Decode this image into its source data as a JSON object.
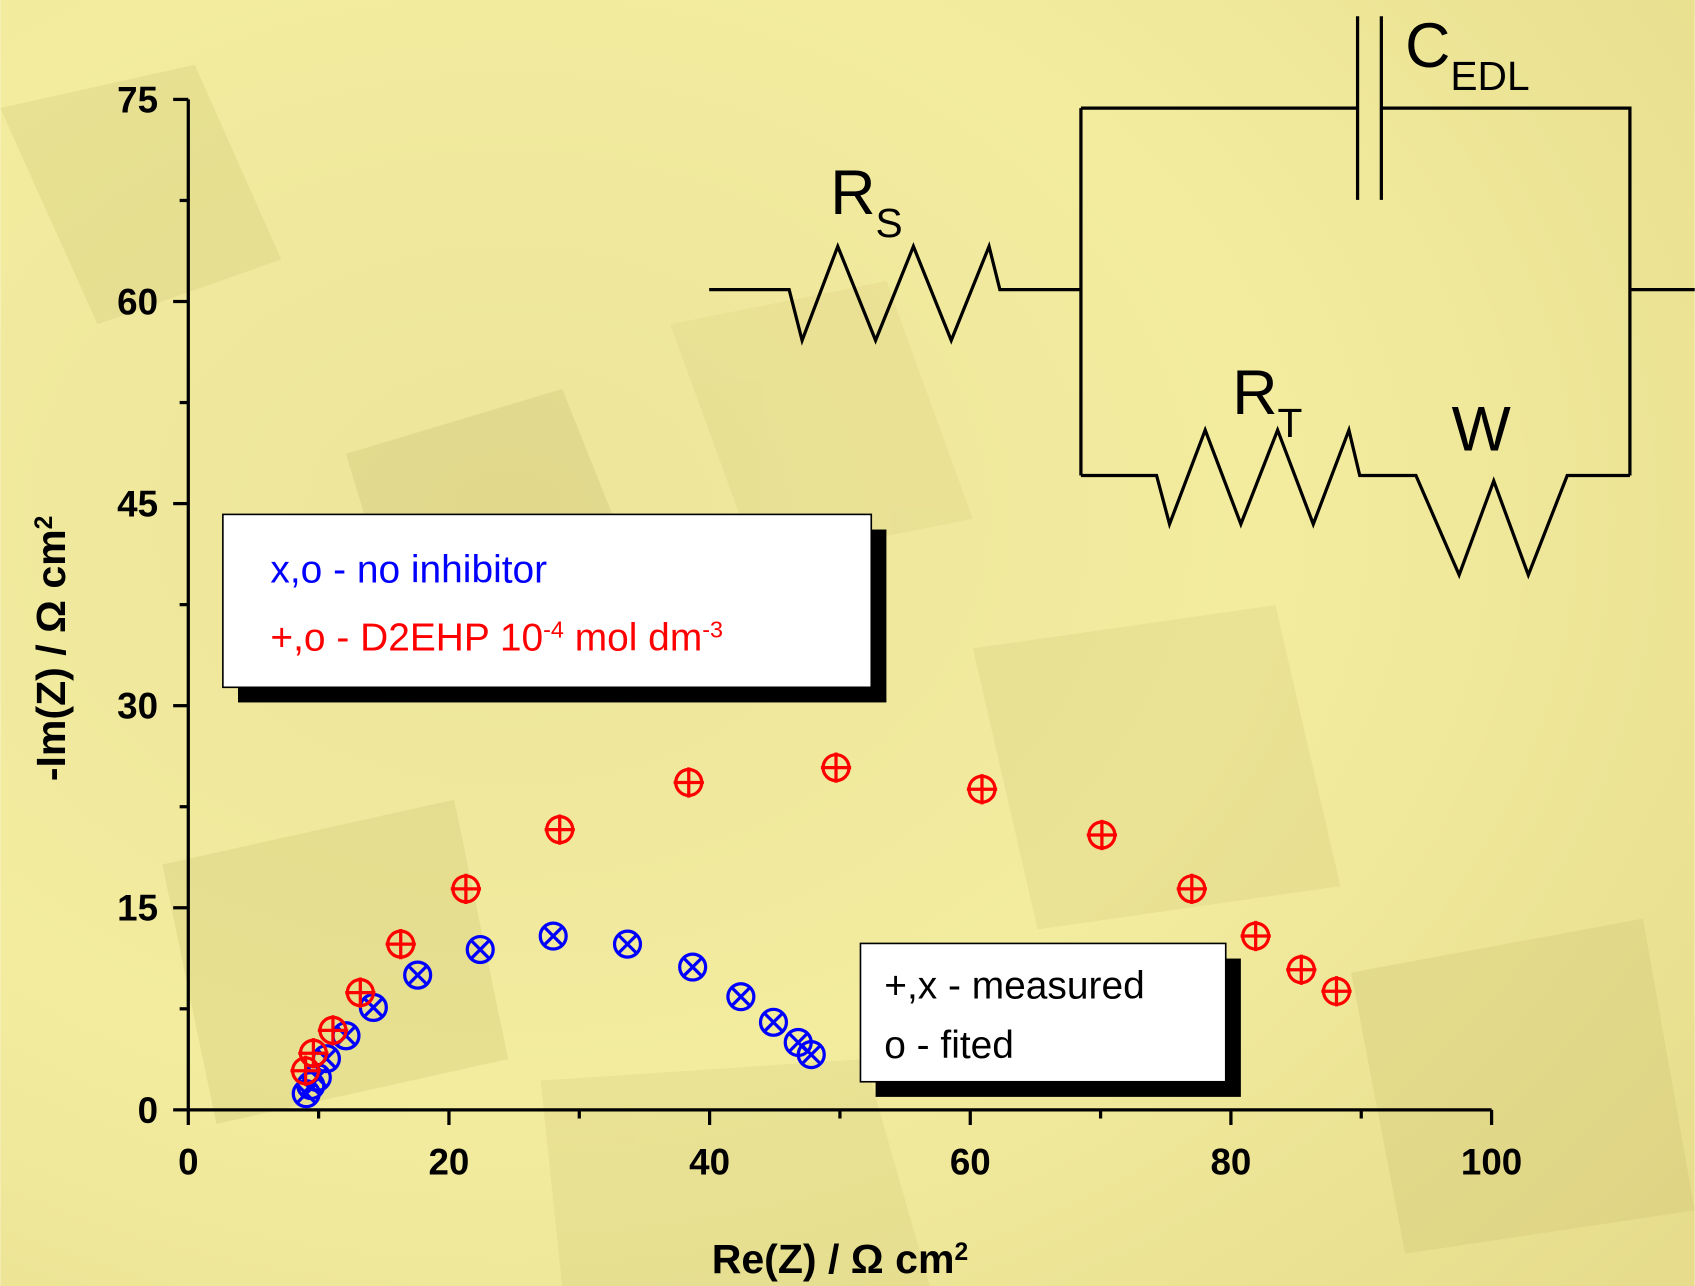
{
  "chart_data": {
    "type": "scatter",
    "xlabel": [
      "Re(Z) / Ω cm",
      {
        "sup": "2"
      }
    ],
    "ylabel": [
      "-Im(Z) / Ω cm",
      {
        "sup": "2"
      }
    ],
    "xlim": [
      0,
      100
    ],
    "ylim": [
      0,
      75
    ],
    "xticks": [
      0,
      20,
      40,
      60,
      80,
      100
    ],
    "yticks": [
      0,
      15,
      30,
      45,
      60,
      75
    ],
    "xminorticks": [
      10,
      30,
      50,
      70,
      90
    ],
    "yminorticks": [
      7.5,
      22.5,
      37.5,
      52.5,
      67.5
    ],
    "series": [
      {
        "marker": "x",
        "color": "#0000ff",
        "x": [
          9.05,
          9.4,
          9.9,
          10.6,
          12.1,
          14.2,
          17.6,
          22.4,
          28.0,
          33.7,
          38.7,
          42.4,
          44.9,
          46.8,
          47.8
        ],
        "values": [
          1.2,
          1.8,
          2.4,
          3.8,
          5.5,
          7.6,
          10.0,
          11.9,
          12.9,
          12.3,
          10.6,
          8.4,
          6.5,
          5.0,
          4.1
        ]
      },
      {
        "marker": "o",
        "color": "#0000ff",
        "x": [
          9.05,
          9.4,
          9.9,
          10.6,
          12.1,
          14.2,
          17.6,
          22.4,
          28.0,
          33.7,
          38.7,
          42.4,
          44.9,
          46.8,
          47.8
        ],
        "values": [
          1.2,
          1.8,
          2.4,
          3.8,
          5.5,
          7.6,
          10.0,
          11.9,
          12.9,
          12.3,
          10.6,
          8.4,
          6.5,
          5.0,
          4.1
        ]
      },
      {
        "marker": "+",
        "color": "#ff0000",
        "x": [
          9.0,
          9.6,
          11.1,
          13.2,
          16.3,
          21.3,
          28.5,
          38.4,
          49.7,
          60.9,
          70.1,
          77.0,
          81.9,
          85.4,
          88.1
        ],
        "values": [
          2.9,
          4.2,
          5.9,
          8.7,
          12.3,
          16.4,
          20.8,
          24.3,
          25.4,
          23.8,
          20.4,
          16.4,
          12.9,
          10.4,
          8.8
        ]
      },
      {
        "marker": "o",
        "color": "#ff0000",
        "x": [
          9.0,
          9.6,
          11.1,
          13.2,
          16.3,
          21.3,
          28.5,
          38.4,
          49.7,
          60.9,
          70.1,
          77.0,
          81.9,
          85.4,
          88.1
        ],
        "values": [
          2.9,
          4.2,
          5.9,
          8.7,
          12.3,
          16.4,
          20.8,
          24.3,
          25.4,
          23.8,
          20.4,
          16.4,
          12.9,
          10.4,
          8.8
        ]
      }
    ],
    "legend_series": [
      {
        "color": "#0000ff",
        "parts": [
          "x,o - no inhibitor"
        ]
      },
      {
        "color": "#ff0000",
        "parts": [
          "+,o - D2EHP 10",
          {
            "sup": "-4"
          },
          " mol dm",
          {
            "sup": "-3"
          }
        ]
      }
    ],
    "legend_markers": [
      {
        "color": "#000000",
        "parts": [
          "+,x - measured"
        ]
      },
      {
        "color": "#000000",
        "parts": [
          "o - fited"
        ]
      }
    ],
    "circuit_labels": [
      [
        "R",
        {
          "sub": "S"
        }
      ],
      [
        "C",
        {
          "sub": "EDL"
        }
      ],
      [
        "R",
        {
          "sub": "T"
        }
      ],
      [
        "W"
      ]
    ]
  }
}
